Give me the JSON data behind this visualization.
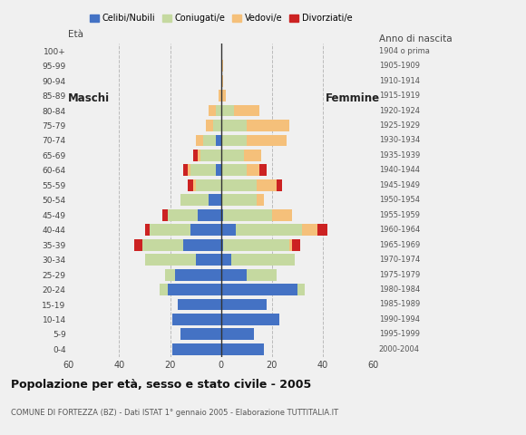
{
  "age_groups": [
    "0-4",
    "5-9",
    "10-14",
    "15-19",
    "20-24",
    "25-29",
    "30-34",
    "35-39",
    "40-44",
    "45-49",
    "50-54",
    "55-59",
    "60-64",
    "65-69",
    "70-74",
    "75-79",
    "80-84",
    "85-89",
    "90-94",
    "95-99",
    "100+"
  ],
  "birth_years": [
    "2000-2004",
    "1995-1999",
    "1990-1994",
    "1985-1989",
    "1980-1984",
    "1975-1979",
    "1970-1974",
    "1965-1969",
    "1960-1964",
    "1955-1959",
    "1950-1954",
    "1945-1949",
    "1940-1944",
    "1935-1939",
    "1930-1934",
    "1925-1929",
    "1920-1924",
    "1915-1919",
    "1910-1914",
    "1905-1909",
    "1904 o prima"
  ],
  "male": {
    "celibi": [
      19,
      16,
      19,
      17,
      21,
      18,
      10,
      15,
      12,
      9,
      5,
      0,
      2,
      0,
      2,
      0,
      0,
      0,
      0,
      0,
      0
    ],
    "coniugati": [
      0,
      0,
      0,
      0,
      3,
      4,
      20,
      16,
      16,
      12,
      11,
      10,
      10,
      8,
      5,
      3,
      2,
      0,
      0,
      0,
      0
    ],
    "vedovi": [
      0,
      0,
      0,
      0,
      0,
      0,
      0,
      0,
      0,
      0,
      0,
      1,
      1,
      1,
      3,
      3,
      3,
      1,
      0,
      0,
      0
    ],
    "divorziati": [
      0,
      0,
      0,
      0,
      0,
      0,
      0,
      3,
      2,
      2,
      0,
      2,
      2,
      2,
      0,
      0,
      0,
      0,
      0,
      0,
      0
    ]
  },
  "female": {
    "nubili": [
      17,
      13,
      23,
      18,
      30,
      10,
      4,
      1,
      6,
      1,
      0,
      0,
      0,
      0,
      0,
      0,
      0,
      0,
      0,
      0,
      0
    ],
    "coniugate": [
      0,
      0,
      0,
      0,
      3,
      12,
      25,
      26,
      26,
      19,
      14,
      14,
      10,
      9,
      10,
      10,
      5,
      0,
      0,
      0,
      0
    ],
    "vedove": [
      0,
      0,
      0,
      0,
      0,
      0,
      0,
      1,
      6,
      8,
      3,
      8,
      5,
      7,
      16,
      17,
      10,
      2,
      1,
      1,
      0
    ],
    "divorziate": [
      0,
      0,
      0,
      0,
      0,
      0,
      0,
      3,
      4,
      0,
      0,
      2,
      3,
      0,
      0,
      0,
      0,
      0,
      0,
      0,
      0
    ]
  },
  "colors": {
    "celibi": "#4472c4",
    "coniugati": "#c5d9a0",
    "vedovi": "#f5c07a",
    "divorziati": "#cc2222"
  },
  "title": "Popolazione per età, sesso e stato civile - 2005",
  "subtitle": "COMUNE DI FORTEZZA (BZ) - Dati ISTAT 1° gennaio 2005 - Elaborazione TUTTITALIA.IT",
  "xlabel_left": "Maschi",
  "xlabel_right": "Femmine",
  "ylabel_left": "Età",
  "ylabel_right": "Anno di nascita",
  "xlim": 60,
  "bg_color": "#f0f0f0",
  "plot_bg": "#f0f0f0",
  "grid_color": "#bbbbbb",
  "legend_labels": [
    "Celibi/Nubili",
    "Coniugati/e",
    "Vedovi/e",
    "Divorziati/e"
  ]
}
